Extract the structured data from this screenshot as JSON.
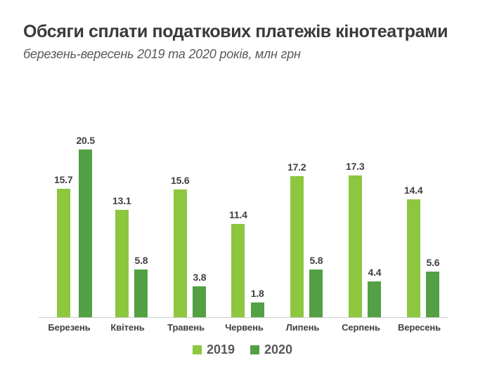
{
  "chart_data": {
    "type": "bar",
    "title": "Обсяги сплати податкових платежів кінотеатрами",
    "subtitle": "березень-вересень 2019 та 2020 років, млн грн",
    "unit": "млн грн",
    "categories": [
      "Березень",
      "Квітень",
      "Травень",
      "Червень",
      "Липень",
      "Серпень",
      "Вересень"
    ],
    "series": [
      {
        "name": "2019",
        "color": "#8DC63F",
        "values": [
          15.7,
          13.1,
          15.6,
          11.4,
          17.2,
          17.3,
          14.4
        ]
      },
      {
        "name": "2020",
        "color": "#53A045",
        "values": [
          20.5,
          5.8,
          3.8,
          1.8,
          5.8,
          4.4,
          5.6
        ]
      }
    ],
    "ylim": [
      0,
      20.5
    ],
    "grid": false,
    "value_labels": true,
    "legend_position": "bottom"
  },
  "colors": {
    "background": "#ffffff",
    "axis_line": "#cbcdce",
    "title_text": "#3a3a3a",
    "subtitle_text": "#58595b",
    "value_text": "#414042",
    "category_text": "#414042",
    "legend_text": "#57585a"
  }
}
